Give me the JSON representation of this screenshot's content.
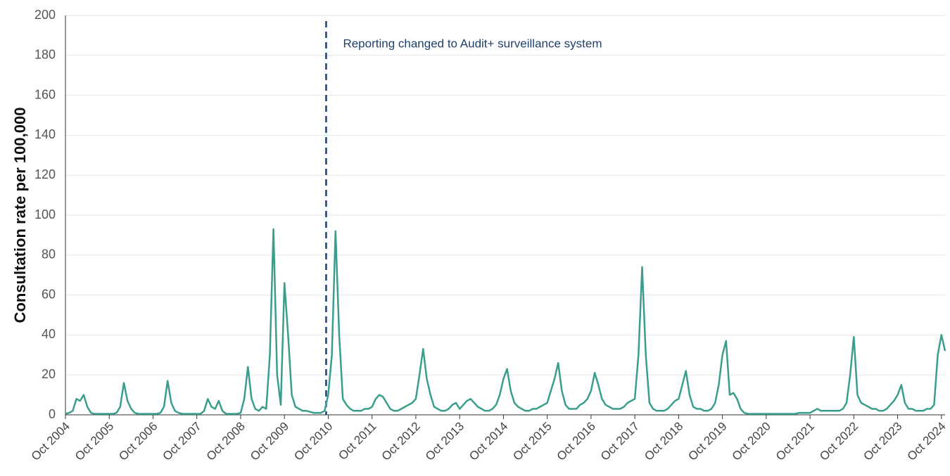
{
  "chart_data": {
    "type": "line",
    "ylabel": "Consultation rate per 100,000",
    "categories": [
      "Oct 2004",
      null,
      null,
      null,
      null,
      null,
      null,
      null,
      null,
      null,
      null,
      null,
      "Oct 2005",
      null,
      null,
      null,
      null,
      null,
      null,
      null,
      null,
      null,
      null,
      null,
      "Oct 2006",
      null,
      null,
      null,
      null,
      null,
      null,
      null,
      null,
      null,
      null,
      null,
      "Oct 2007",
      null,
      null,
      null,
      null,
      null,
      null,
      null,
      null,
      null,
      null,
      null,
      "Oct 2008",
      null,
      null,
      null,
      null,
      null,
      null,
      null,
      null,
      null,
      null,
      null,
      "Oct 2009",
      null,
      null,
      null,
      null,
      null,
      null,
      null,
      null,
      null,
      null,
      null,
      "Oct 2010",
      null,
      null,
      null,
      null,
      null,
      null,
      null,
      null,
      null,
      null,
      null,
      "Oct 2011",
      null,
      null,
      null,
      null,
      null,
      null,
      null,
      null,
      null,
      null,
      null,
      "Oct 2012",
      null,
      null,
      null,
      null,
      null,
      null,
      null,
      null,
      null,
      null,
      null,
      "Oct 2013",
      null,
      null,
      null,
      null,
      null,
      null,
      null,
      null,
      null,
      null,
      null,
      "Oct 2014",
      null,
      null,
      null,
      null,
      null,
      null,
      null,
      null,
      null,
      null,
      null,
      "Oct 2015",
      null,
      null,
      null,
      null,
      null,
      null,
      null,
      null,
      null,
      null,
      null,
      "Oct 2016",
      null,
      null,
      null,
      null,
      null,
      null,
      null,
      null,
      null,
      null,
      null,
      "Oct 2017",
      null,
      null,
      null,
      null,
      null,
      null,
      null,
      null,
      null,
      null,
      null,
      "Oct 2018",
      null,
      null,
      null,
      null,
      null,
      null,
      null,
      null,
      null,
      null,
      null,
      "Oct 2019",
      null,
      null,
      null,
      null,
      null,
      null,
      null,
      null,
      null,
      null,
      null,
      "Oct 2020",
      null,
      null,
      null,
      null,
      null,
      null,
      null,
      null,
      null,
      null,
      null,
      "Oct 2021",
      null,
      null,
      null,
      null,
      null,
      null,
      null,
      null,
      null,
      null,
      null,
      "Oct 2022",
      null,
      null,
      null,
      null,
      null,
      null,
      null,
      null,
      null,
      null,
      null,
      "Oct 2023",
      null,
      null,
      null,
      null,
      null,
      null,
      null,
      null,
      null,
      null,
      null,
      "Oct 2024",
      null
    ],
    "values": [
      0.5,
      1,
      2,
      8,
      7,
      10,
      4,
      1,
      0.5,
      0.5,
      0.5,
      0.5,
      0.5,
      0.5,
      1,
      4,
      16,
      7,
      3,
      1,
      0.5,
      0.5,
      0.5,
      0.5,
      0.5,
      0.5,
      1,
      4,
      17,
      6,
      2,
      1,
      0.5,
      0.5,
      0.5,
      0.5,
      0.5,
      0.5,
      2,
      8,
      4,
      3,
      7,
      2,
      0.5,
      0.5,
      0.5,
      0.5,
      1,
      8,
      24,
      8,
      3,
      2,
      4,
      3,
      30,
      93,
      20,
      5,
      66,
      40,
      10,
      4,
      3,
      2,
      2,
      1.5,
      1,
      1,
      1,
      2,
      10,
      30,
      92,
      40,
      8,
      5,
      3,
      2,
      2,
      2,
      3,
      3,
      4,
      8,
      10,
      9,
      6,
      3,
      2,
      2,
      3,
      4,
      5,
      6,
      8,
      20,
      33,
      18,
      10,
      4,
      3,
      2,
      2,
      3,
      5,
      6,
      3,
      5,
      7,
      8,
      6,
      4,
      3,
      2,
      2,
      3,
      5,
      10,
      18,
      23,
      12,
      6,
      4,
      3,
      2,
      2,
      3,
      3,
      4,
      5,
      6,
      12,
      18,
      26,
      12,
      5,
      3,
      3,
      3,
      5,
      6,
      8,
      12,
      21,
      15,
      8,
      5,
      4,
      3,
      3,
      3,
      4,
      6,
      7,
      8,
      30,
      74,
      30,
      6,
      3,
      2,
      2,
      2,
      3,
      5,
      7,
      8,
      15,
      22,
      10,
      4,
      3,
      3,
      2,
      2,
      3,
      6,
      15,
      30,
      37,
      10,
      11,
      8,
      3,
      1,
      0.5,
      0.5,
      0.5,
      0.5,
      0.5,
      0.5,
      0.5,
      0.5,
      0.5,
      0.5,
      0.5,
      0.5,
      0.5,
      0.5,
      1,
      1,
      1,
      1,
      2,
      3,
      2,
      2,
      2,
      2,
      2,
      2,
      3,
      6,
      20,
      39,
      10,
      6,
      5,
      4,
      3,
      3,
      2,
      2,
      3,
      5,
      7,
      10,
      15,
      6,
      3,
      3,
      2,
      2,
      2,
      3,
      3,
      5,
      30,
      40,
      32
    ],
    "color": "#3a9e8d",
    "ylim": [
      0,
      200
    ],
    "yticks": [
      0,
      20,
      40,
      60,
      80,
      100,
      120,
      140,
      160,
      180,
      200
    ],
    "grid": true,
    "annotation": {
      "text": "Reporting changed to Audit+ surveillance system",
      "x": "Oct 2010",
      "color": "#1f3f6e"
    }
  }
}
